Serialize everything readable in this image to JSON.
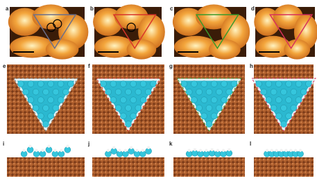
{
  "panels": [
    {
      "label": "a"
    },
    {
      "label": "b"
    },
    {
      "label": "c"
    },
    {
      "label": "d"
    },
    {
      "label": "e"
    },
    {
      "label": "f"
    },
    {
      "label": "g"
    },
    {
      "label": "h"
    },
    {
      "label": "i"
    },
    {
      "label": "j"
    },
    {
      "label": "k"
    },
    {
      "label": "l"
    }
  ]
}
